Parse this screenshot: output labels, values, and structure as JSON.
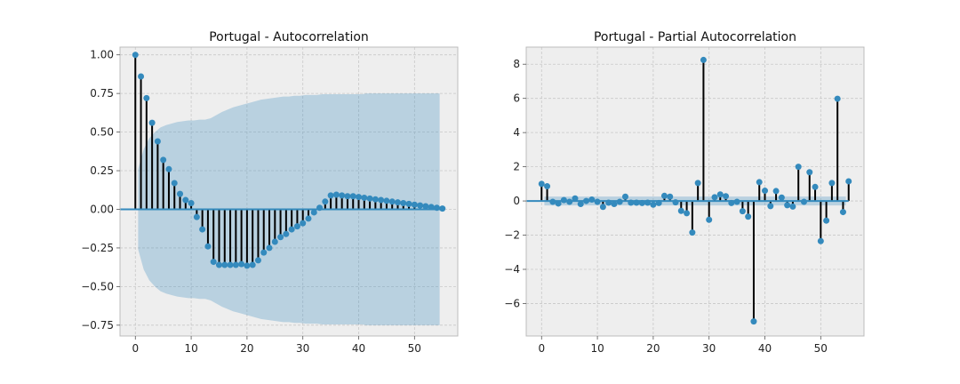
{
  "chart_data": [
    {
      "type": "stem",
      "title": "Portugal - Autocorrelation",
      "xlim": [
        -2.75,
        57.75
      ],
      "ylim": [
        -0.82,
        1.05
      ],
      "xticks": [
        0,
        10,
        20,
        30,
        40,
        50
      ],
      "yticks": [
        -0.75,
        -0.5,
        -0.25,
        0.0,
        0.25,
        0.5,
        0.75,
        1.0
      ],
      "ytick_labels": [
        "−0.75",
        "−0.50",
        "−0.25",
        "0.00",
        "0.25",
        "0.50",
        "0.75",
        "1.00"
      ],
      "lags": [
        0,
        1,
        2,
        3,
        4,
        5,
        6,
        7,
        8,
        9,
        10,
        11,
        12,
        13,
        14,
        15,
        16,
        17,
        18,
        19,
        20,
        21,
        22,
        23,
        24,
        25,
        26,
        27,
        28,
        29,
        30,
        31,
        32,
        33,
        34,
        35,
        36,
        37,
        38,
        39,
        40,
        41,
        42,
        43,
        44,
        45,
        46,
        47,
        48,
        49,
        50,
        51,
        52,
        53,
        54,
        55
      ],
      "values": [
        1.0,
        0.86,
        0.72,
        0.56,
        0.44,
        0.32,
        0.26,
        0.17,
        0.1,
        0.06,
        0.04,
        -0.05,
        -0.13,
        -0.24,
        -0.34,
        -0.36,
        -0.36,
        -0.36,
        -0.36,
        -0.355,
        -0.365,
        -0.36,
        -0.33,
        -0.28,
        -0.25,
        -0.21,
        -0.18,
        -0.16,
        -0.13,
        -0.11,
        -0.09,
        -0.06,
        -0.02,
        0.01,
        0.05,
        0.09,
        0.095,
        0.09,
        0.085,
        0.085,
        0.08,
        0.075,
        0.07,
        0.065,
        0.06,
        0.055,
        0.05,
        0.045,
        0.04,
        0.035,
        0.03,
        0.025,
        0.02,
        0.015,
        0.01,
        0.005
      ],
      "confidence_band": {
        "lags": [
          1,
          2,
          3,
          4,
          5,
          6,
          7,
          8,
          9,
          10,
          11,
          12,
          13,
          14,
          15,
          16,
          17,
          18,
          19,
          20,
          21,
          22,
          23,
          24,
          25,
          26,
          27,
          28,
          29,
          30,
          31,
          32,
          33,
          34,
          35,
          36,
          37,
          38,
          39,
          40,
          41,
          42,
          43,
          44,
          45,
          46,
          47,
          48,
          49,
          50,
          51,
          52,
          53,
          54,
          55
        ],
        "upper": [
          0.26,
          0.39,
          0.46,
          0.5,
          0.53,
          0.545,
          0.555,
          0.565,
          0.57,
          0.575,
          0.575,
          0.58,
          0.58,
          0.59,
          0.61,
          0.63,
          0.645,
          0.66,
          0.67,
          0.68,
          0.69,
          0.7,
          0.71,
          0.715,
          0.72,
          0.725,
          0.73,
          0.73,
          0.735,
          0.735,
          0.74,
          0.74,
          0.74,
          0.745,
          0.745,
          0.745,
          0.745,
          0.745,
          0.745,
          0.745,
          0.745,
          0.75,
          0.75,
          0.75,
          0.75,
          0.75,
          0.75,
          0.75,
          0.75,
          0.75,
          0.75,
          0.75,
          0.75,
          0.75,
          0.75
        ]
      }
    },
    {
      "type": "stem",
      "title": "Portugal - Partial Autocorrelation",
      "xlim": [
        -2.75,
        57.75
      ],
      "ylim": [
        -7.9,
        9.0
      ],
      "xticks": [
        0,
        10,
        20,
        30,
        40,
        50
      ],
      "yticks": [
        -6,
        -4,
        -2,
        0,
        2,
        4,
        6,
        8
      ],
      "ytick_labels": [
        "−6",
        "−4",
        "−2",
        "0",
        "2",
        "4",
        "6",
        "8"
      ],
      "lags": [
        0,
        1,
        2,
        3,
        4,
        5,
        6,
        7,
        8,
        9,
        10,
        11,
        12,
        13,
        14,
        15,
        16,
        17,
        18,
        19,
        20,
        21,
        22,
        23,
        24,
        25,
        26,
        27,
        28,
        29,
        30,
        31,
        32,
        33,
        34,
        35,
        36,
        37,
        38,
        39,
        40,
        41,
        42,
        43,
        44,
        45,
        46,
        47,
        48,
        49,
        50,
        51,
        52,
        53,
        54,
        55
      ],
      "values": [
        1.0,
        0.86,
        -0.05,
        -0.15,
        0.05,
        -0.05,
        0.15,
        -0.18,
        0.0,
        0.08,
        -0.05,
        -0.35,
        -0.1,
        -0.18,
        -0.05,
        0.25,
        -0.1,
        -0.1,
        -0.12,
        -0.1,
        -0.22,
        -0.12,
        0.3,
        0.25,
        -0.08,
        -0.58,
        -0.72,
        -1.85,
        1.05,
        8.25,
        -1.1,
        0.22,
        0.38,
        0.28,
        -0.12,
        -0.05,
        -0.6,
        -0.92,
        -7.05,
        1.1,
        0.6,
        -0.3,
        0.58,
        0.2,
        -0.25,
        -0.33,
        2.0,
        -0.05,
        1.68,
        0.82,
        -2.35,
        -1.15,
        1.05,
        5.98,
        -0.65,
        1.15
      ],
      "confidence_band": {
        "lags": [
          1,
          2,
          3,
          4,
          5,
          6,
          7,
          8,
          9,
          10,
          11,
          12,
          13,
          14,
          15,
          16,
          17,
          18,
          19,
          20,
          21,
          22,
          23,
          24,
          25,
          26,
          27,
          28,
          29,
          30,
          31,
          32,
          33,
          34,
          35,
          36,
          37,
          38,
          39,
          40,
          41,
          42,
          43,
          44,
          45,
          46,
          47,
          48,
          49,
          50,
          51,
          52,
          53,
          54,
          55
        ],
        "upper": [
          0.26,
          0.26,
          0.26,
          0.26,
          0.26,
          0.26,
          0.26,
          0.26,
          0.26,
          0.26,
          0.26,
          0.26,
          0.26,
          0.26,
          0.26,
          0.26,
          0.26,
          0.26,
          0.26,
          0.26,
          0.26,
          0.26,
          0.26,
          0.26,
          0.26,
          0.26,
          0.26,
          0.26,
          0.26,
          0.26,
          0.26,
          0.26,
          0.26,
          0.26,
          0.26,
          0.26,
          0.26,
          0.26,
          0.26,
          0.26,
          0.26,
          0.26,
          0.26,
          0.26,
          0.26,
          0.26,
          0.26,
          0.26,
          0.26,
          0.26,
          0.26,
          0.26,
          0.26,
          0.26,
          0.26
        ]
      }
    }
  ]
}
